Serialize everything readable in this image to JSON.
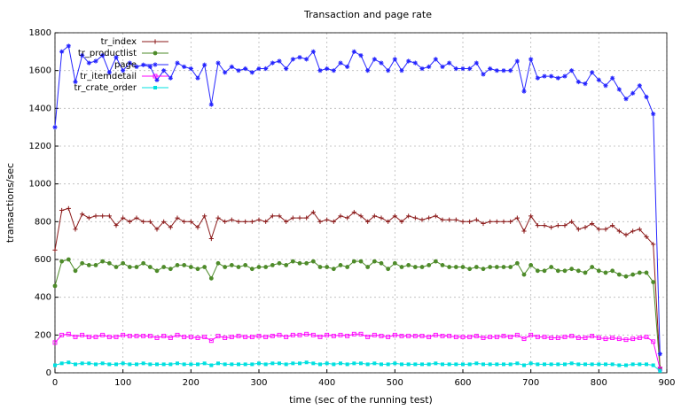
{
  "chart_data": {
    "type": "line",
    "title": "Transaction and page rate",
    "x_label": "time (sec of the running test)",
    "y_label": "transactions/sec",
    "x": [
      0,
      10,
      20,
      30,
      40,
      50,
      60,
      70,
      80,
      90,
      100,
      110,
      120,
      130,
      140,
      150,
      160,
      170,
      180,
      190,
      200,
      210,
      220,
      230,
      240,
      250,
      260,
      270,
      280,
      290,
      300,
      310,
      320,
      330,
      340,
      350,
      360,
      370,
      380,
      390,
      400,
      410,
      420,
      430,
      440,
      450,
      460,
      470,
      480,
      490,
      500,
      510,
      520,
      530,
      540,
      550,
      560,
      570,
      580,
      590,
      600,
      610,
      620,
      630,
      640,
      650,
      660,
      670,
      680,
      690,
      700,
      710,
      720,
      730,
      740,
      750,
      760,
      770,
      780,
      790,
      800,
      810,
      820,
      830,
      840,
      850,
      860,
      870,
      880,
      890
    ],
    "series": [
      {
        "name": "tr_index",
        "color": "#8b1a1a",
        "marker": "plus",
        "values": [
          650,
          860,
          870,
          760,
          840,
          820,
          830,
          830,
          830,
          780,
          820,
          800,
          820,
          800,
          800,
          760,
          800,
          770,
          820,
          800,
          800,
          770,
          830,
          710,
          820,
          800,
          810,
          800,
          800,
          800,
          810,
          800,
          830,
          830,
          800,
          820,
          820,
          820,
          850,
          800,
          810,
          800,
          830,
          820,
          850,
          830,
          800,
          830,
          820,
          800,
          830,
          800,
          830,
          820,
          810,
          820,
          830,
          810,
          810,
          810,
          800,
          800,
          810,
          790,
          800,
          800,
          800,
          800,
          820,
          750,
          830,
          780,
          780,
          770,
          780,
          780,
          800,
          760,
          770,
          790,
          760,
          760,
          780,
          750,
          730,
          750,
          760,
          720,
          680,
          30
        ]
      },
      {
        "name": "tr_productlist",
        "color": "#4e8b2a",
        "marker": "circle",
        "values": [
          460,
          590,
          600,
          540,
          580,
          570,
          570,
          590,
          580,
          560,
          580,
          560,
          560,
          580,
          560,
          540,
          560,
          550,
          570,
          570,
          560,
          550,
          560,
          500,
          580,
          560,
          570,
          560,
          570,
          550,
          560,
          560,
          570,
          580,
          570,
          590,
          580,
          580,
          590,
          560,
          560,
          550,
          570,
          560,
          590,
          590,
          560,
          590,
          580,
          550,
          580,
          560,
          570,
          560,
          560,
          570,
          590,
          570,
          560,
          560,
          560,
          550,
          560,
          550,
          560,
          560,
          560,
          560,
          580,
          520,
          570,
          540,
          540,
          560,
          540,
          540,
          550,
          540,
          530,
          560,
          540,
          530,
          540,
          520,
          510,
          520,
          530,
          530,
          480,
          20
        ]
      },
      {
        "name": "page",
        "color": "#2424ff",
        "marker": "star",
        "values": [
          1300,
          1700,
          1730,
          1540,
          1680,
          1640,
          1650,
          1680,
          1590,
          1670,
          1600,
          1640,
          1620,
          1630,
          1620,
          1550,
          1600,
          1560,
          1640,
          1620,
          1610,
          1560,
          1630,
          1420,
          1640,
          1590,
          1620,
          1600,
          1610,
          1590,
          1610,
          1610,
          1640,
          1650,
          1610,
          1660,
          1670,
          1660,
          1700,
          1600,
          1610,
          1600,
          1640,
          1620,
          1700,
          1680,
          1600,
          1660,
          1640,
          1600,
          1660,
          1600,
          1650,
          1640,
          1610,
          1620,
          1660,
          1620,
          1640,
          1610,
          1610,
          1610,
          1640,
          1580,
          1610,
          1600,
          1600,
          1600,
          1650,
          1490,
          1660,
          1560,
          1570,
          1570,
          1560,
          1570,
          1600,
          1540,
          1530,
          1590,
          1550,
          1520,
          1560,
          1500,
          1450,
          1480,
          1520,
          1460,
          1370,
          100
        ]
      },
      {
        "name": "tr_itemdetail",
        "color": "#ff00ff",
        "marker": "square-open",
        "values": [
          160,
          200,
          205,
          190,
          200,
          190,
          190,
          200,
          190,
          190,
          200,
          195,
          195,
          195,
          195,
          185,
          195,
          185,
          200,
          190,
          190,
          185,
          190,
          170,
          195,
          185,
          190,
          195,
          190,
          190,
          195,
          190,
          195,
          200,
          190,
          200,
          200,
          205,
          200,
          190,
          200,
          195,
          200,
          195,
          205,
          205,
          190,
          200,
          195,
          190,
          200,
          195,
          195,
          195,
          195,
          190,
          200,
          195,
          195,
          190,
          190,
          190,
          195,
          185,
          190,
          190,
          195,
          190,
          200,
          180,
          200,
          190,
          190,
          185,
          185,
          190,
          195,
          185,
          185,
          195,
          185,
          180,
          185,
          180,
          175,
          180,
          185,
          190,
          165,
          20
        ]
      },
      {
        "name": "tr_crate_order",
        "color": "#00e0e0",
        "marker": "square",
        "values": [
          40,
          50,
          55,
          45,
          50,
          50,
          45,
          50,
          45,
          45,
          50,
          45,
          45,
          50,
          45,
          45,
          45,
          45,
          50,
          45,
          45,
          45,
          50,
          40,
          50,
          45,
          45,
          45,
          45,
          45,
          50,
          45,
          50,
          50,
          45,
          50,
          50,
          55,
          50,
          45,
          50,
          45,
          50,
          45,
          50,
          50,
          45,
          50,
          45,
          45,
          50,
          45,
          45,
          45,
          45,
          45,
          50,
          45,
          45,
          45,
          45,
          45,
          50,
          45,
          45,
          45,
          45,
          45,
          50,
          40,
          50,
          45,
          45,
          45,
          45,
          45,
          50,
          45,
          45,
          45,
          45,
          45,
          45,
          40,
          40,
          45,
          45,
          45,
          40,
          10
        ]
      }
    ],
    "xlim": [
      0,
      900
    ],
    "xticks": [
      0,
      100,
      200,
      300,
      400,
      500,
      600,
      700,
      800,
      900
    ],
    "ylim": [
      0,
      1800
    ],
    "yticks": [
      0,
      200,
      400,
      600,
      800,
      1000,
      1200,
      1400,
      1600,
      1800
    ],
    "grid": true,
    "legend": "top-left"
  }
}
